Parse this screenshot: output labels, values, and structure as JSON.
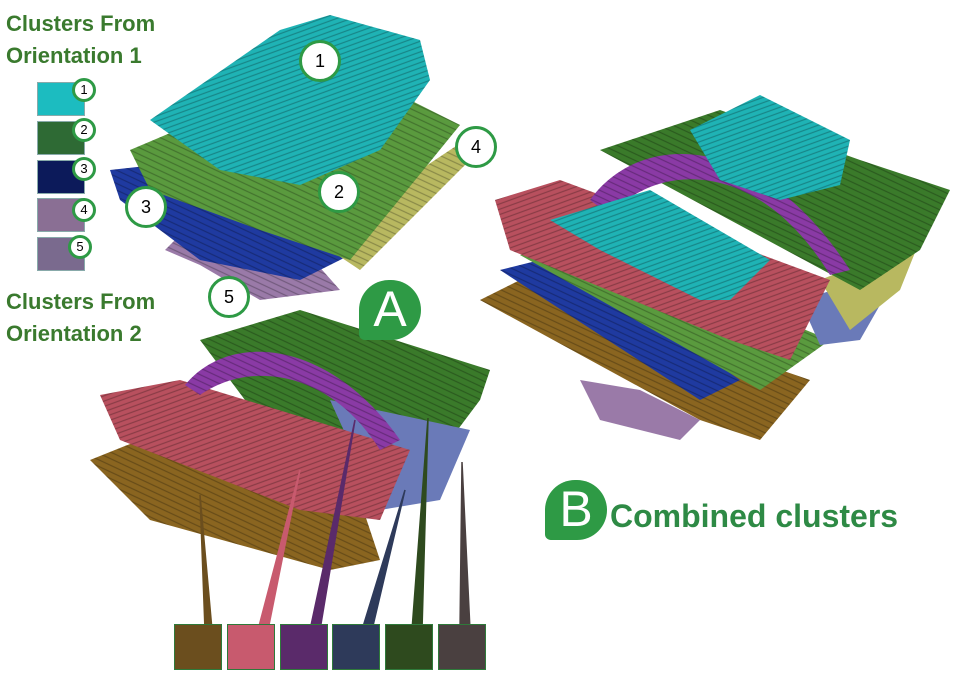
{
  "orientation1_title_line1": "Clusters From",
  "orientation1_title_line2": "Orientation 1",
  "orientation2_title_line1": "Clusters From",
  "orientation2_title_line2": "Orientation 2",
  "legend_orientation1": [
    {
      "num": "1",
      "color": "#1cbcc0"
    },
    {
      "num": "2",
      "color": "#2e6a34"
    },
    {
      "num": "3",
      "color": "#0c1a5a"
    },
    {
      "num": "4",
      "color": "#8a6f94"
    },
    {
      "num": "5",
      "color": "#7a6a8e"
    }
  ],
  "legend_orientation2_colors": [
    "#6b4e1e",
    "#c85a6e",
    "#5a2a6a",
    "#2e3a5a",
    "#2e4a1e",
    "#4a4040"
  ],
  "label_a": "A",
  "label_b": "B",
  "combined_label": "Combined clusters",
  "diagram_a_labels": [
    "1",
    "2",
    "3",
    "4",
    "5"
  ],
  "colors": {
    "cyan": "#1fb3b5",
    "green": "#4e9a3a",
    "blue": "#1f3aa0",
    "olive": "#b8b860",
    "lilac": "#9a7aa8",
    "brown": "#8a6520",
    "red": "#b8505e",
    "purple": "#8a3aa5",
    "darkgreen": "#3a7a2a",
    "accent": "#2e9a45"
  }
}
